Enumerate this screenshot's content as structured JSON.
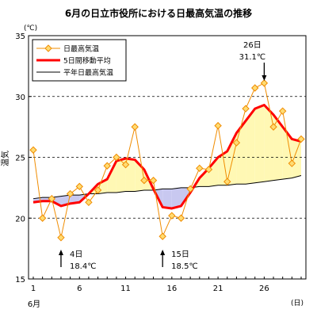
{
  "chart_data": {
    "type": "line",
    "title": "6月の日立市役所における日最高気温の推移",
    "y_unit": "(℃)",
    "ylabel": "温気",
    "x_unit": "(日)",
    "x_month_label": "6月",
    "ylim": [
      15,
      35
    ],
    "y_ticks": [
      15,
      20,
      25,
      30,
      35
    ],
    "xlim": [
      1,
      30
    ],
    "x_ticks": [
      1,
      6,
      11,
      16,
      21,
      26
    ],
    "grid": "horizontal dashed",
    "legend_position": "top-left",
    "colors": {
      "daily_max": "#f08c00",
      "daily_max_marker_fill": "#ffdc73",
      "moving_avg": "#ff0000",
      "normal": "#000000",
      "fill_above_normal": "#fff8b4",
      "fill_below_normal": "#c8c8f0"
    },
    "x": [
      1,
      2,
      3,
      4,
      5,
      6,
      7,
      8,
      9,
      10,
      11,
      12,
      13,
      14,
      15,
      16,
      17,
      18,
      19,
      20,
      21,
      22,
      23,
      24,
      25,
      26,
      27,
      28,
      29,
      30
    ],
    "series": [
      {
        "name": "日最高気温",
        "key": "daily_max",
        "marker": "diamond",
        "values": [
          25.6,
          20.0,
          21.6,
          18.4,
          22.0,
          22.6,
          21.3,
          22.3,
          24.3,
          25.0,
          24.4,
          27.5,
          23.1,
          23.1,
          18.5,
          20.2,
          20.0,
          22.4,
          24.1,
          24.0,
          27.6,
          23.0,
          26.2,
          29.0,
          30.7,
          31.1,
          27.5,
          28.8,
          24.5,
          26.5
        ]
      },
      {
        "name": "5日間移動平均",
        "key": "moving_avg",
        "x": [
          1,
          2,
          3,
          4,
          5,
          6,
          7,
          8,
          9,
          10,
          11,
          12,
          13,
          14,
          15,
          16,
          17,
          18,
          19,
          20,
          21,
          22,
          23,
          24,
          25,
          26,
          27,
          28,
          29,
          30
        ],
        "values": [
          21.3,
          21.4,
          21.4,
          21.0,
          21.2,
          21.3,
          22.0,
          22.8,
          23.2,
          24.7,
          24.9,
          24.8,
          24.0,
          22.4,
          20.9,
          20.8,
          21.0,
          22.1,
          23.3,
          24.1,
          25.0,
          25.5,
          27.0,
          28.0,
          29.0,
          29.3,
          28.5,
          27.5,
          26.5,
          26.3
        ]
      },
      {
        "name": "平年日最高気温",
        "key": "normal",
        "values": [
          21.6,
          21.7,
          21.7,
          21.8,
          21.9,
          21.9,
          22.0,
          22.0,
          22.1,
          22.1,
          22.2,
          22.2,
          22.3,
          22.3,
          22.4,
          22.4,
          22.5,
          22.5,
          22.6,
          22.6,
          22.7,
          22.7,
          22.8,
          22.8,
          22.9,
          23.0,
          23.1,
          23.2,
          23.3,
          23.5
        ]
      }
    ],
    "annotations": [
      {
        "x": 4,
        "direction": "up",
        "day_label": "4日",
        "value_label": "18.4℃"
      },
      {
        "x": 15,
        "direction": "up",
        "day_label": "15日",
        "value_label": "18.5℃"
      },
      {
        "x": 26,
        "direction": "down",
        "day_label": "26日",
        "value_label": "31.1℃"
      }
    ]
  }
}
